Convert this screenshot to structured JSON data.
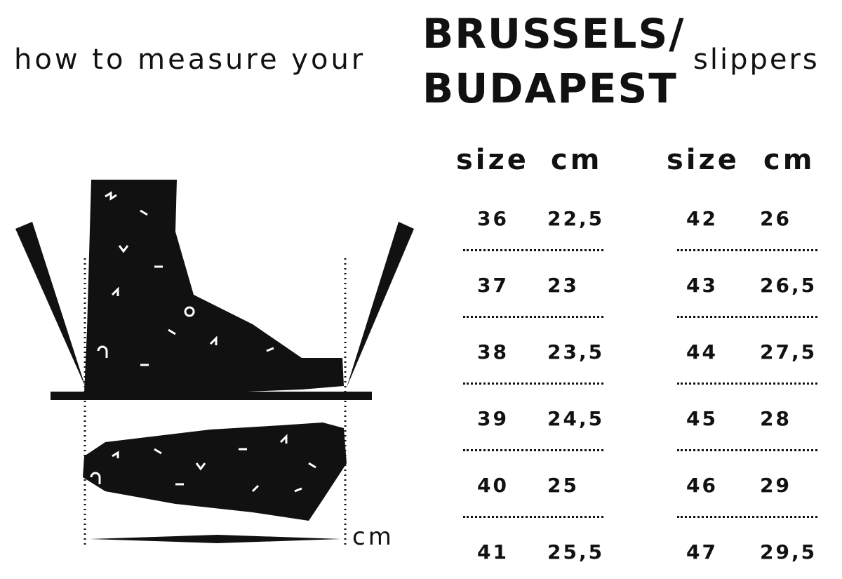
{
  "title": {
    "lead": "how to measure your",
    "brand_line1": "BRUSSELS/",
    "brand_line2": "BUDAPEST",
    "tail": "slippers"
  },
  "illustration": {
    "unit_label": "cm",
    "icons": [
      "pencil-icon",
      "foot-side-icon",
      "foot-top-icon",
      "ruler-icon"
    ],
    "color": "#111111"
  },
  "table": {
    "headers": [
      "size",
      "cm",
      "size",
      "cm"
    ],
    "left": [
      [
        "36",
        "22,5"
      ],
      [
        "37",
        "23"
      ],
      [
        "38",
        "23,5"
      ],
      [
        "39",
        "24,5"
      ],
      [
        "40",
        "25"
      ],
      [
        "41",
        "25,5"
      ]
    ],
    "right": [
      [
        "42",
        "26"
      ],
      [
        "43",
        "26,5"
      ],
      [
        "44",
        "27,5"
      ],
      [
        "45",
        "28"
      ],
      [
        "46",
        "29"
      ],
      [
        "47",
        "29,5"
      ]
    ]
  }
}
